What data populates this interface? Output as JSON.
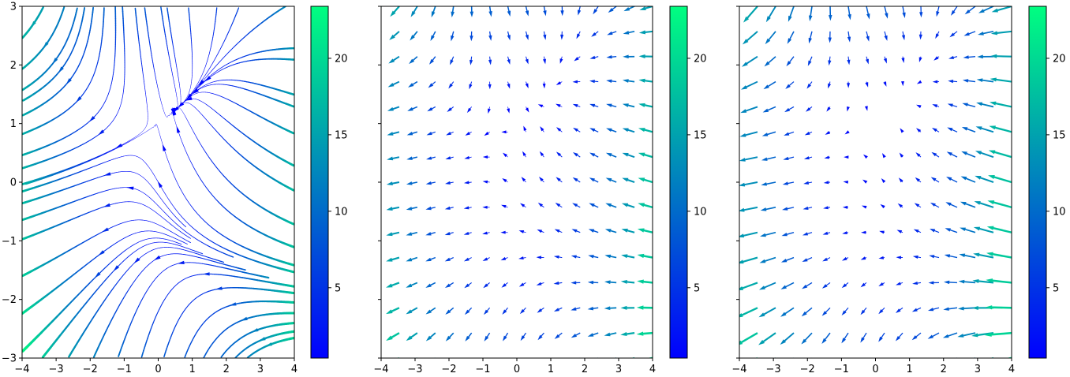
{
  "chart_data": [
    {
      "type": "streamplot",
      "title": "",
      "xlabel": "",
      "ylabel": "",
      "xlim": [
        -4,
        4
      ],
      "ylim": [
        -3,
        3
      ],
      "xticks": [
        -4,
        -3,
        -2,
        -1,
        0,
        1,
        2,
        3,
        4
      ],
      "yticks": [
        -3,
        -2,
        -1,
        0,
        1,
        2,
        3
      ],
      "show_yticklabels": true,
      "grid": false,
      "colormap": "winter",
      "colorbar": {
        "min": 0.4,
        "max": 23.4,
        "ticks": [
          5,
          10,
          15,
          20
        ]
      }
    },
    {
      "type": "quiver",
      "title": "",
      "xlabel": "",
      "ylabel": "",
      "xlim": [
        -4,
        4
      ],
      "ylim": [
        -3,
        3
      ],
      "xticks": [
        -4,
        -3,
        -2,
        -1,
        0,
        1,
        2,
        3,
        4
      ],
      "yticks": [
        -3,
        -2,
        -1,
        0,
        1,
        2,
        3
      ],
      "show_yticklabels": false,
      "grid": false,
      "colormap": "winter",
      "colorbar": {
        "min": 0.4,
        "max": 23.4,
        "ticks": [
          5,
          10,
          15,
          20
        ]
      }
    },
    {
      "type": "quiver",
      "title": "",
      "xlabel": "",
      "ylabel": "",
      "xlim": [
        -4,
        4
      ],
      "ylim": [
        -3,
        3
      ],
      "xticks": [
        -4,
        -3,
        -2,
        -1,
        0,
        1,
        2,
        3,
        4
      ],
      "yticks": [
        -3,
        -2,
        -1,
        0,
        1,
        2,
        3
      ],
      "show_yticklabels": false,
      "grid": false,
      "colormap": "winter",
      "colorbar": {
        "min": 0.4,
        "max": 23.4,
        "ticks": [
          5,
          10,
          15,
          20
        ]
      }
    }
  ],
  "colors": {
    "cmap_low": "#0000ff",
    "cmap_high": "#00ff80"
  }
}
